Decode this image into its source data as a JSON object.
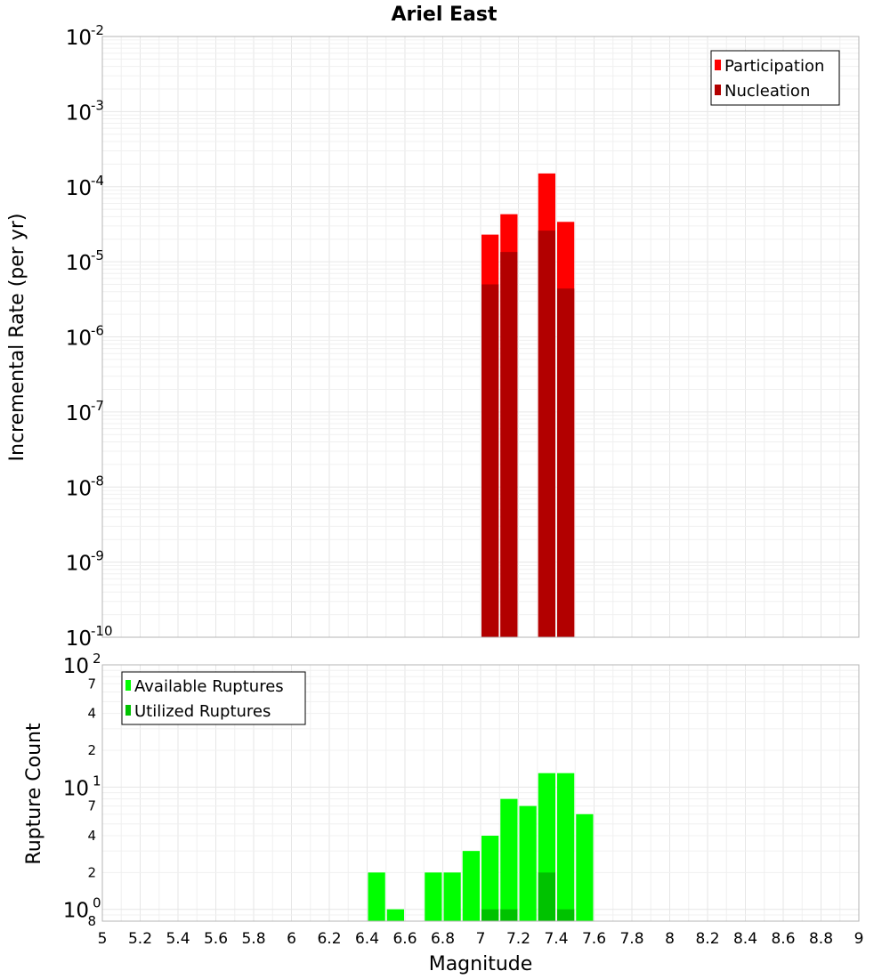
{
  "title": "Ariel East",
  "chart_data": [
    {
      "type": "bar",
      "name": "rate-chart",
      "title": "Ariel East",
      "xlabel": "Magnitude",
      "ylabel": "Incremental Rate (per yr)",
      "yscale": "log",
      "ylim": [
        1e-10,
        0.01
      ],
      "xlim": [
        5,
        9
      ],
      "bin_width": 0.1,
      "legend_position": "top-right",
      "y_ticks": [
        {
          "base": "10",
          "exp": "-2"
        },
        {
          "base": "10",
          "exp": "-3"
        },
        {
          "base": "10",
          "exp": "-4"
        },
        {
          "base": "10",
          "exp": "-5"
        },
        {
          "base": "10",
          "exp": "-6"
        },
        {
          "base": "10",
          "exp": "-7"
        },
        {
          "base": "10",
          "exp": "-8"
        },
        {
          "base": "10",
          "exp": "-9"
        },
        {
          "base": "10",
          "exp": "-10"
        }
      ],
      "series": [
        {
          "name": "Participation",
          "color": "#ff0000",
          "x": [
            7.05,
            7.15,
            7.35,
            7.45
          ],
          "values": [
            2.3e-05,
            4.3e-05,
            0.00015,
            3.4e-05
          ]
        },
        {
          "name": "Nucleation",
          "color": "#b20000",
          "x": [
            7.05,
            7.15,
            7.35,
            7.45
          ],
          "values": [
            5e-06,
            1.35e-05,
            2.6e-05,
            4.4e-06
          ]
        }
      ]
    },
    {
      "type": "bar",
      "name": "count-chart",
      "xlabel": "Magnitude",
      "ylabel": "Rupture Count",
      "yscale": "log",
      "ylim": [
        0.8,
        100
      ],
      "xlim": [
        5,
        9
      ],
      "bin_width": 0.1,
      "legend_position": "top-left",
      "y_ticks": [
        {
          "kind": "major",
          "base": "10",
          "exp": "2",
          "value": 100
        },
        {
          "kind": "minor",
          "label": "7",
          "value": 70
        },
        {
          "kind": "minor",
          "label": "4",
          "value": 40
        },
        {
          "kind": "minor",
          "label": "2",
          "value": 20
        },
        {
          "kind": "major",
          "base": "10",
          "exp": "1",
          "value": 10
        },
        {
          "kind": "minor",
          "label": "7",
          "value": 7
        },
        {
          "kind": "minor",
          "label": "4",
          "value": 4
        },
        {
          "kind": "minor",
          "label": "2",
          "value": 2
        },
        {
          "kind": "major",
          "base": "10",
          "exp": "0",
          "value": 1
        },
        {
          "kind": "minor",
          "label": "8",
          "value": 0.8
        }
      ],
      "series": [
        {
          "name": "Available Ruptures",
          "color": "#00ff00",
          "x": [
            6.45,
            6.55,
            6.75,
            6.85,
            6.95,
            7.05,
            7.15,
            7.25,
            7.35,
            7.45,
            7.55
          ],
          "values": [
            2,
            1,
            2,
            2,
            3,
            4,
            8,
            7,
            13,
            13,
            6
          ]
        },
        {
          "name": "Utilized Ruptures",
          "color": "#00c200",
          "x": [
            7.05,
            7.15,
            7.35,
            7.45
          ],
          "values": [
            1,
            1,
            2,
            1
          ]
        }
      ]
    }
  ],
  "x_ticks": [
    "5",
    "5.2",
    "5.4",
    "5.6",
    "5.8",
    "6",
    "6.2",
    "6.4",
    "6.6",
    "6.8",
    "7",
    "7.2",
    "7.4",
    "7.6",
    "7.8",
    "8",
    "8.2",
    "8.4",
    "8.6",
    "8.8",
    "9"
  ]
}
